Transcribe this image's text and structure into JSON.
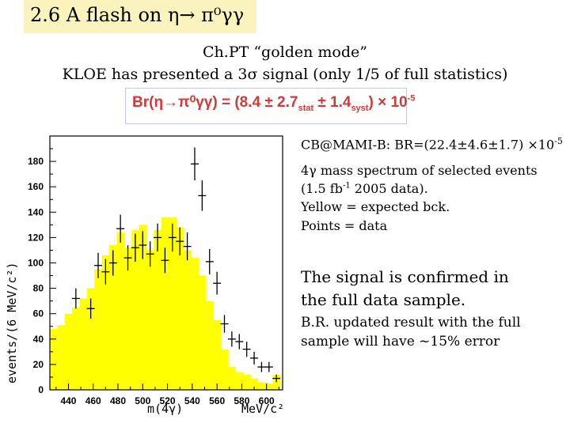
{
  "slide": {
    "title": "2.6 A flash on η→ π⁰γγ",
    "subtitle1": "Ch.PT “golden mode”",
    "subtitle2": "KLOE has presented a 3σ signal (only 1/5 of full statistics)",
    "formula": {
      "lhs": "Br(η→π⁰γγ) = (8.4 ± 2.7",
      "stat": "stat",
      "mid": " ± 1.4",
      "syst": "syst",
      "rhs": ") × 10",
      "exp": "-5"
    }
  },
  "notes": {
    "mami_text": "CB@MAMI-B: BR=(22.4±4.6±1.7) ×10",
    "mami_exp": "-5",
    "desc1": "4γ mass spectrum of selected events",
    "desc2a": "(1.5 fb",
    "desc2_exp": "-1",
    "desc2b": " 2005 data).",
    "desc3": "Yellow  = expected bck.",
    "desc4": "Points = data",
    "confirm1": "The signal is confirmed in",
    "confirm2": "the full data sample.",
    "update1": "B.R. updated result with the full",
    "update2": "sample will have ~15% error"
  },
  "colors": {
    "background_fill": "#ffff00",
    "title_bg": "#fbf3bd",
    "formula_text": "#d23a3a",
    "data_points": "#000000"
  },
  "chart_data": {
    "type": "bar",
    "ylabel": "events/(6 MeV/c²)",
    "xlabel_left": "m(4γ)",
    "xlabel_right": "MeV/c²",
    "xlim": [
      425,
      613
    ],
    "ylim": [
      0,
      200
    ],
    "xticks": [
      440,
      460,
      480,
      500,
      520,
      540,
      560,
      580,
      600
    ],
    "yticks": [
      0,
      20,
      40,
      60,
      80,
      100,
      120,
      140,
      160,
      180
    ],
    "bin_width": 6,
    "series": [
      {
        "name": "Yellow = expected bck.",
        "type": "histogram",
        "bin_centers": [
          428,
          434,
          440,
          446,
          452,
          458,
          464,
          470,
          476,
          482,
          488,
          494,
          500,
          506,
          512,
          518,
          524,
          530,
          536,
          542,
          548,
          554,
          560,
          566,
          572,
          578,
          584,
          590,
          596,
          602,
          608
        ],
        "values": [
          48,
          51,
          60,
          65,
          72,
          80,
          95,
          106,
          114,
          124,
          112,
          126,
          130,
          110,
          126,
          136,
          136,
          128,
          110,
          104,
          90,
          70,
          55,
          32,
          18,
          14,
          12,
          9,
          6,
          5,
          12
        ]
      },
      {
        "name": "Points = data",
        "type": "errorbar",
        "x": [
          446,
          458,
          464,
          470,
          476,
          482,
          488,
          494,
          500,
          506,
          512,
          518,
          524,
          530,
          536,
          542,
          548,
          554,
          560,
          566,
          572,
          578,
          584,
          590,
          596,
          602,
          608
        ],
        "y": [
          72,
          64,
          98,
          93,
          100,
          127,
          104,
          112,
          114,
          107,
          120,
          102,
          120,
          117,
          113,
          178,
          153,
          101,
          84,
          52,
          40,
          38,
          32,
          25,
          18,
          18,
          9
        ],
        "yerr": [
          8,
          8,
          10,
          10,
          10,
          11,
          10,
          11,
          11,
          10,
          11,
          10,
          11,
          11,
          11,
          13,
          12,
          10,
          9,
          7,
          6,
          6,
          6,
          5,
          4,
          4,
          3
        ]
      }
    ]
  }
}
